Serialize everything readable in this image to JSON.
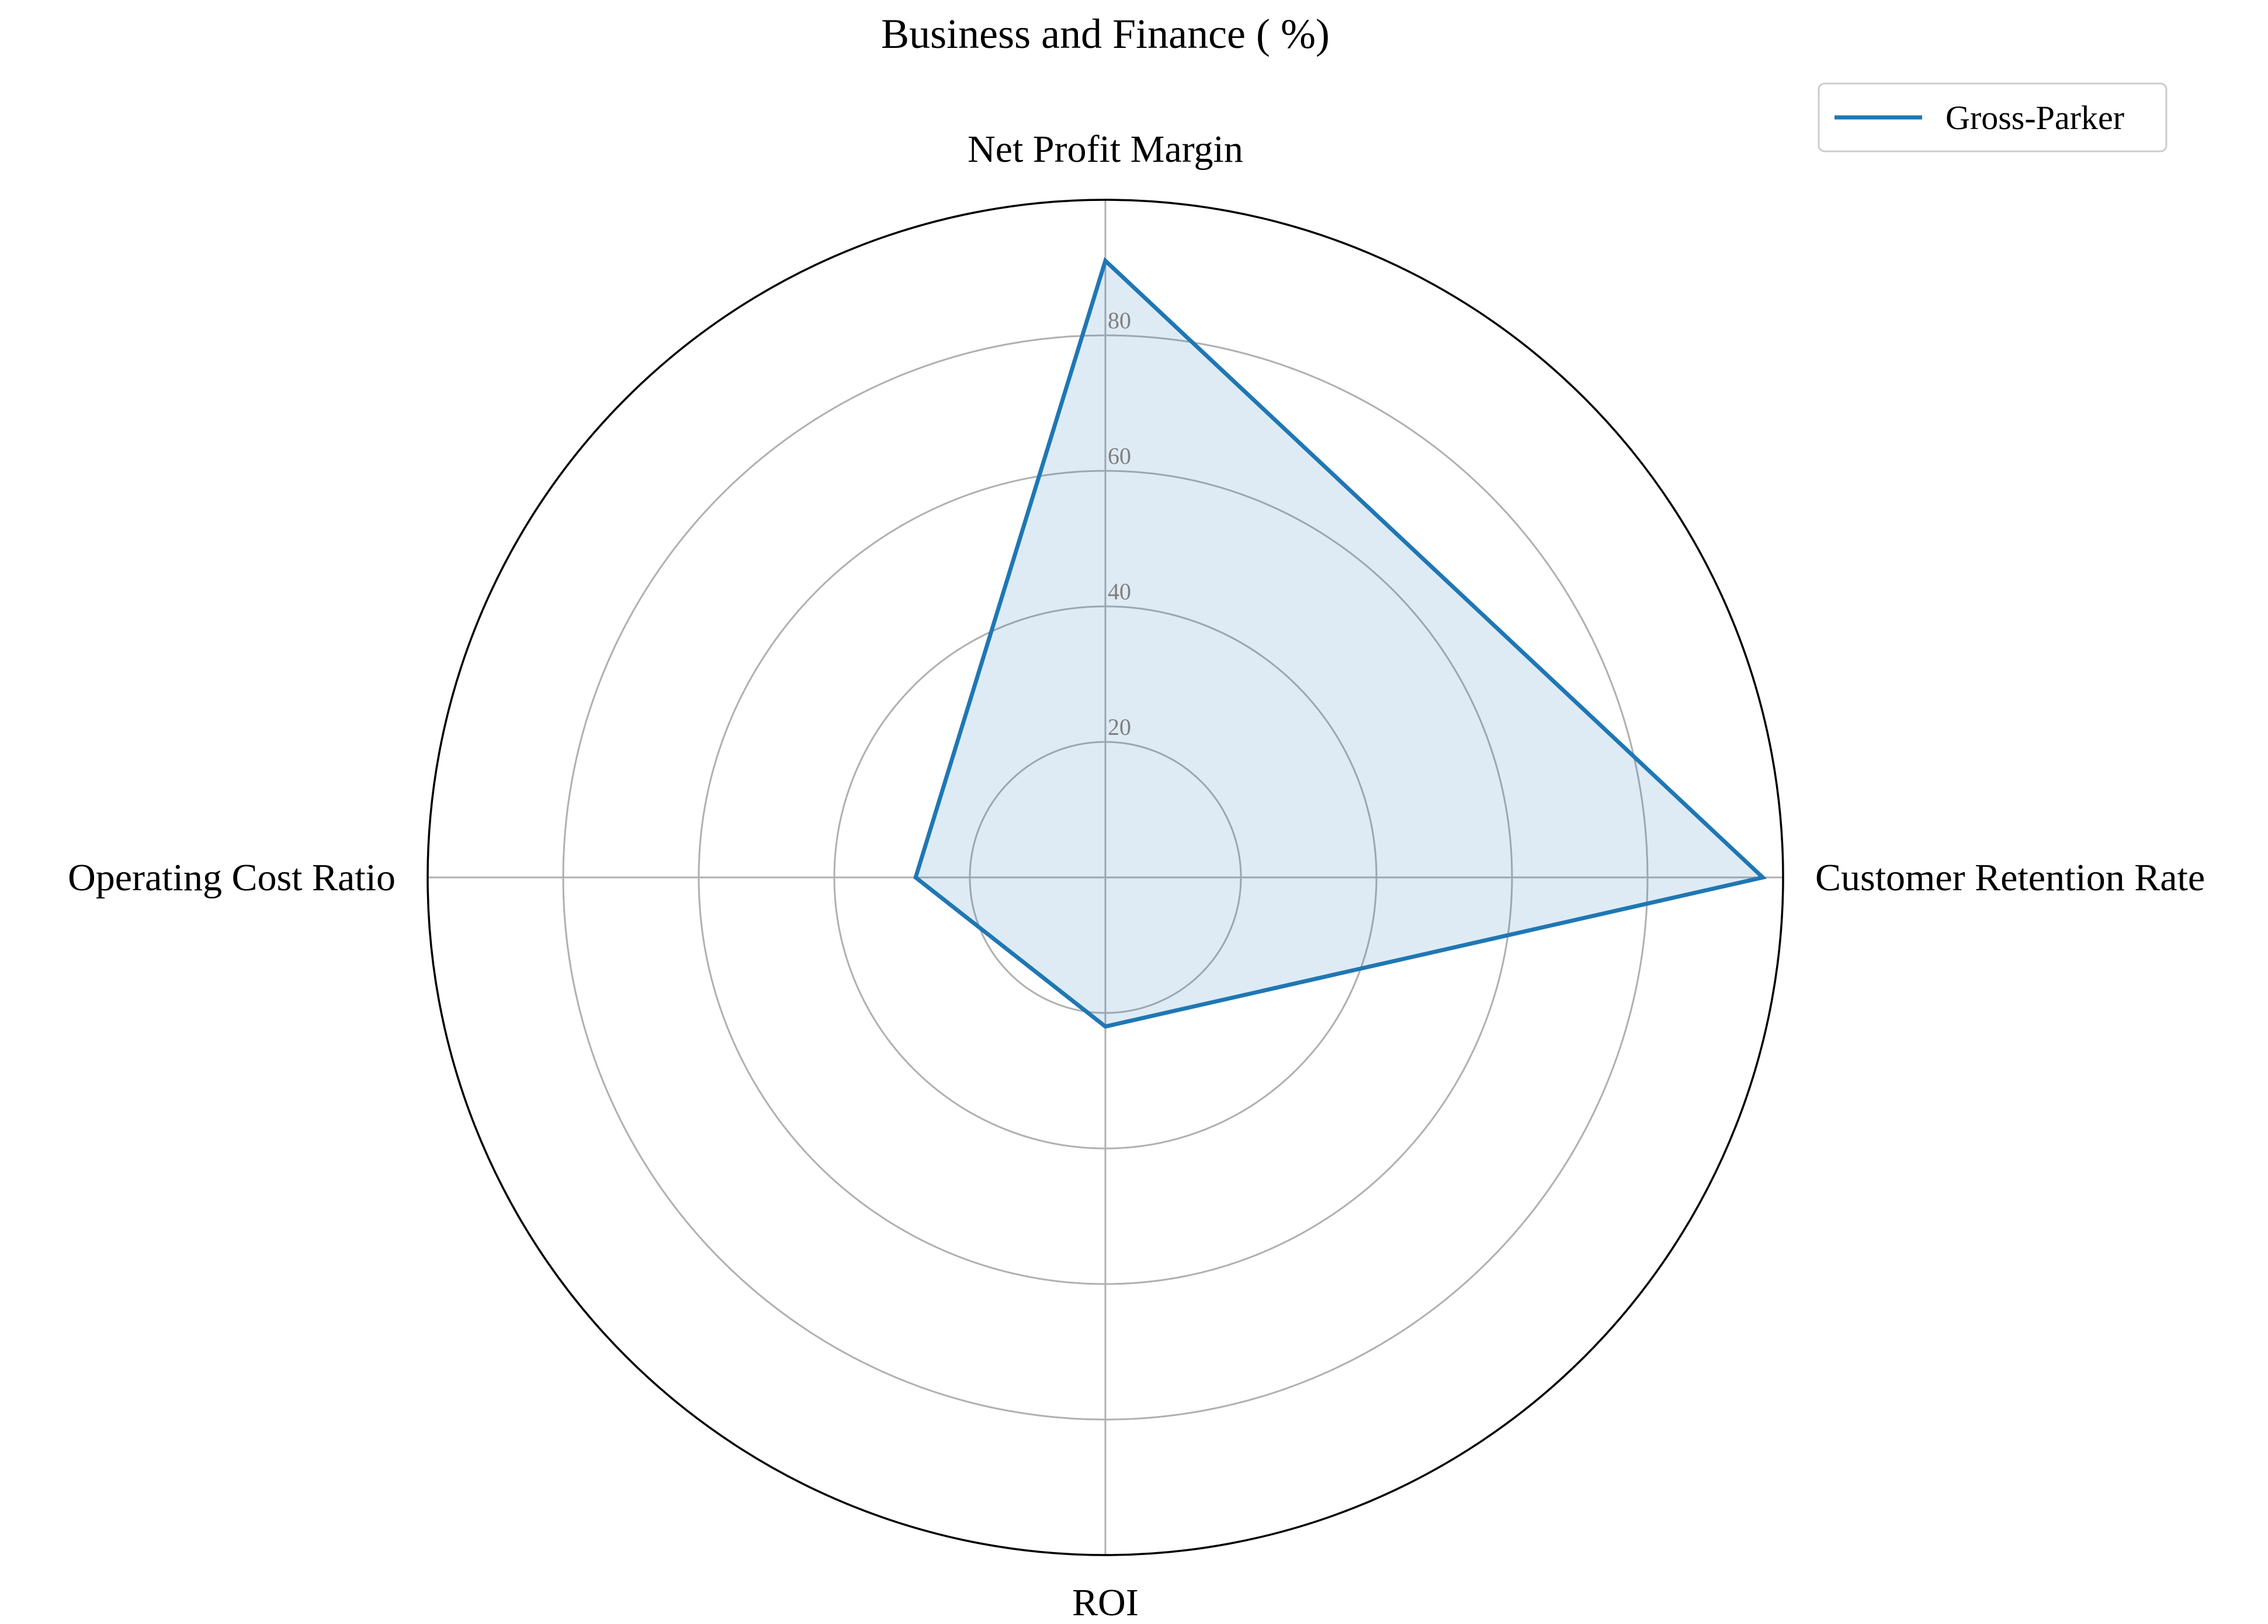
{
  "chart_data": {
    "type": "radar",
    "title": "Business and Finance ( %)",
    "axes": [
      "Net Profit Margin",
      "Customer Retention Rate",
      "ROI",
      "Operating Cost Ratio"
    ],
    "radial_ticks": [
      "20",
      "40",
      "60",
      "80"
    ],
    "radial_tick_values": [
      20,
      40,
      60,
      80
    ],
    "rmax": 100,
    "grid": true,
    "legend_position": "top-right",
    "series": [
      {
        "name": "Gross-Parker",
        "values": [
          91,
          97,
          22,
          28
        ],
        "color": "#1f77b4",
        "fill_color": "#1f77b4",
        "fill_opacity": 0.15
      }
    ]
  },
  "colors": {
    "grid": "#b0b0b0",
    "frame": "#000000",
    "tick_text": "#7f7f7f"
  }
}
